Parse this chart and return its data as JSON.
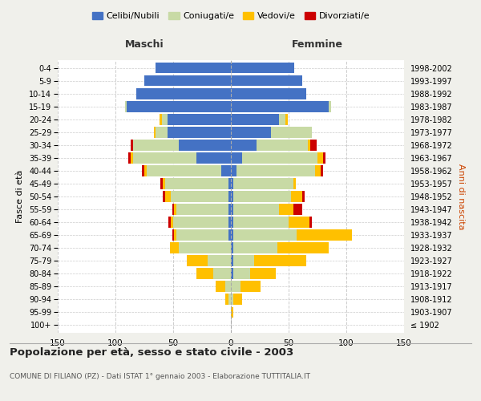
{
  "age_groups": [
    "100+",
    "95-99",
    "90-94",
    "85-89",
    "80-84",
    "75-79",
    "70-74",
    "65-69",
    "60-64",
    "55-59",
    "50-54",
    "45-49",
    "40-44",
    "35-39",
    "30-34",
    "25-29",
    "20-24",
    "15-19",
    "10-14",
    "5-9",
    "0-4"
  ],
  "birth_years": [
    "≤ 1902",
    "1903-1907",
    "1908-1912",
    "1913-1917",
    "1918-1922",
    "1923-1927",
    "1928-1932",
    "1933-1937",
    "1938-1942",
    "1943-1947",
    "1948-1952",
    "1953-1957",
    "1958-1962",
    "1963-1967",
    "1968-1972",
    "1973-1977",
    "1978-1982",
    "1983-1987",
    "1988-1992",
    "1993-1997",
    "1998-2002"
  ],
  "maschi": {
    "celibi": [
      0,
      0,
      0,
      0,
      0,
      0,
      0,
      2,
      2,
      2,
      2,
      2,
      8,
      30,
      45,
      55,
      55,
      90,
      82,
      75,
      65
    ],
    "coniugati": [
      0,
      0,
      2,
      5,
      15,
      20,
      45,
      45,
      48,
      45,
      50,
      55,
      65,
      55,
      40,
      10,
      5,
      2,
      0,
      0,
      0
    ],
    "vedovi": [
      0,
      0,
      3,
      8,
      15,
      18,
      8,
      2,
      2,
      2,
      5,
      2,
      2,
      2,
      0,
      2,
      2,
      0,
      0,
      0,
      0
    ],
    "divorziati": [
      0,
      0,
      0,
      0,
      0,
      0,
      0,
      2,
      2,
      2,
      2,
      2,
      2,
      2,
      2,
      0,
      0,
      0,
      0,
      0,
      0
    ]
  },
  "femmine": {
    "nubili": [
      0,
      0,
      0,
      0,
      2,
      2,
      2,
      2,
      2,
      2,
      2,
      2,
      5,
      10,
      22,
      35,
      42,
      85,
      65,
      62,
      55
    ],
    "coniugate": [
      0,
      0,
      2,
      8,
      15,
      18,
      38,
      55,
      48,
      40,
      50,
      52,
      68,
      65,
      45,
      35,
      5,
      2,
      0,
      0,
      0
    ],
    "vedove": [
      0,
      2,
      8,
      18,
      22,
      45,
      45,
      48,
      18,
      12,
      10,
      2,
      5,
      5,
      2,
      0,
      2,
      0,
      0,
      0,
      0
    ],
    "divorziate": [
      0,
      0,
      0,
      0,
      0,
      0,
      0,
      0,
      2,
      8,
      2,
      0,
      2,
      2,
      5,
      0,
      0,
      0,
      0,
      0,
      0
    ]
  },
  "colors": {
    "celibi": "#4472c4",
    "coniugati": "#c8daa5",
    "vedovi": "#ffc000",
    "divorziati": "#cc0000"
  },
  "xlim": 150,
  "title": "Popolazione per età, sesso e stato civile - 2003",
  "subtitle": "COMUNE DI FILIANO (PZ) - Dati ISTAT 1° gennaio 2003 - Elaborazione TUTTITALIA.IT",
  "ylabel_left": "Fasce di età",
  "ylabel_right": "Anni di nascita",
  "xlabel_left": "Maschi",
  "xlabel_right": "Femmine",
  "bg_color": "#f0f0eb",
  "plot_bg": "#ffffff"
}
